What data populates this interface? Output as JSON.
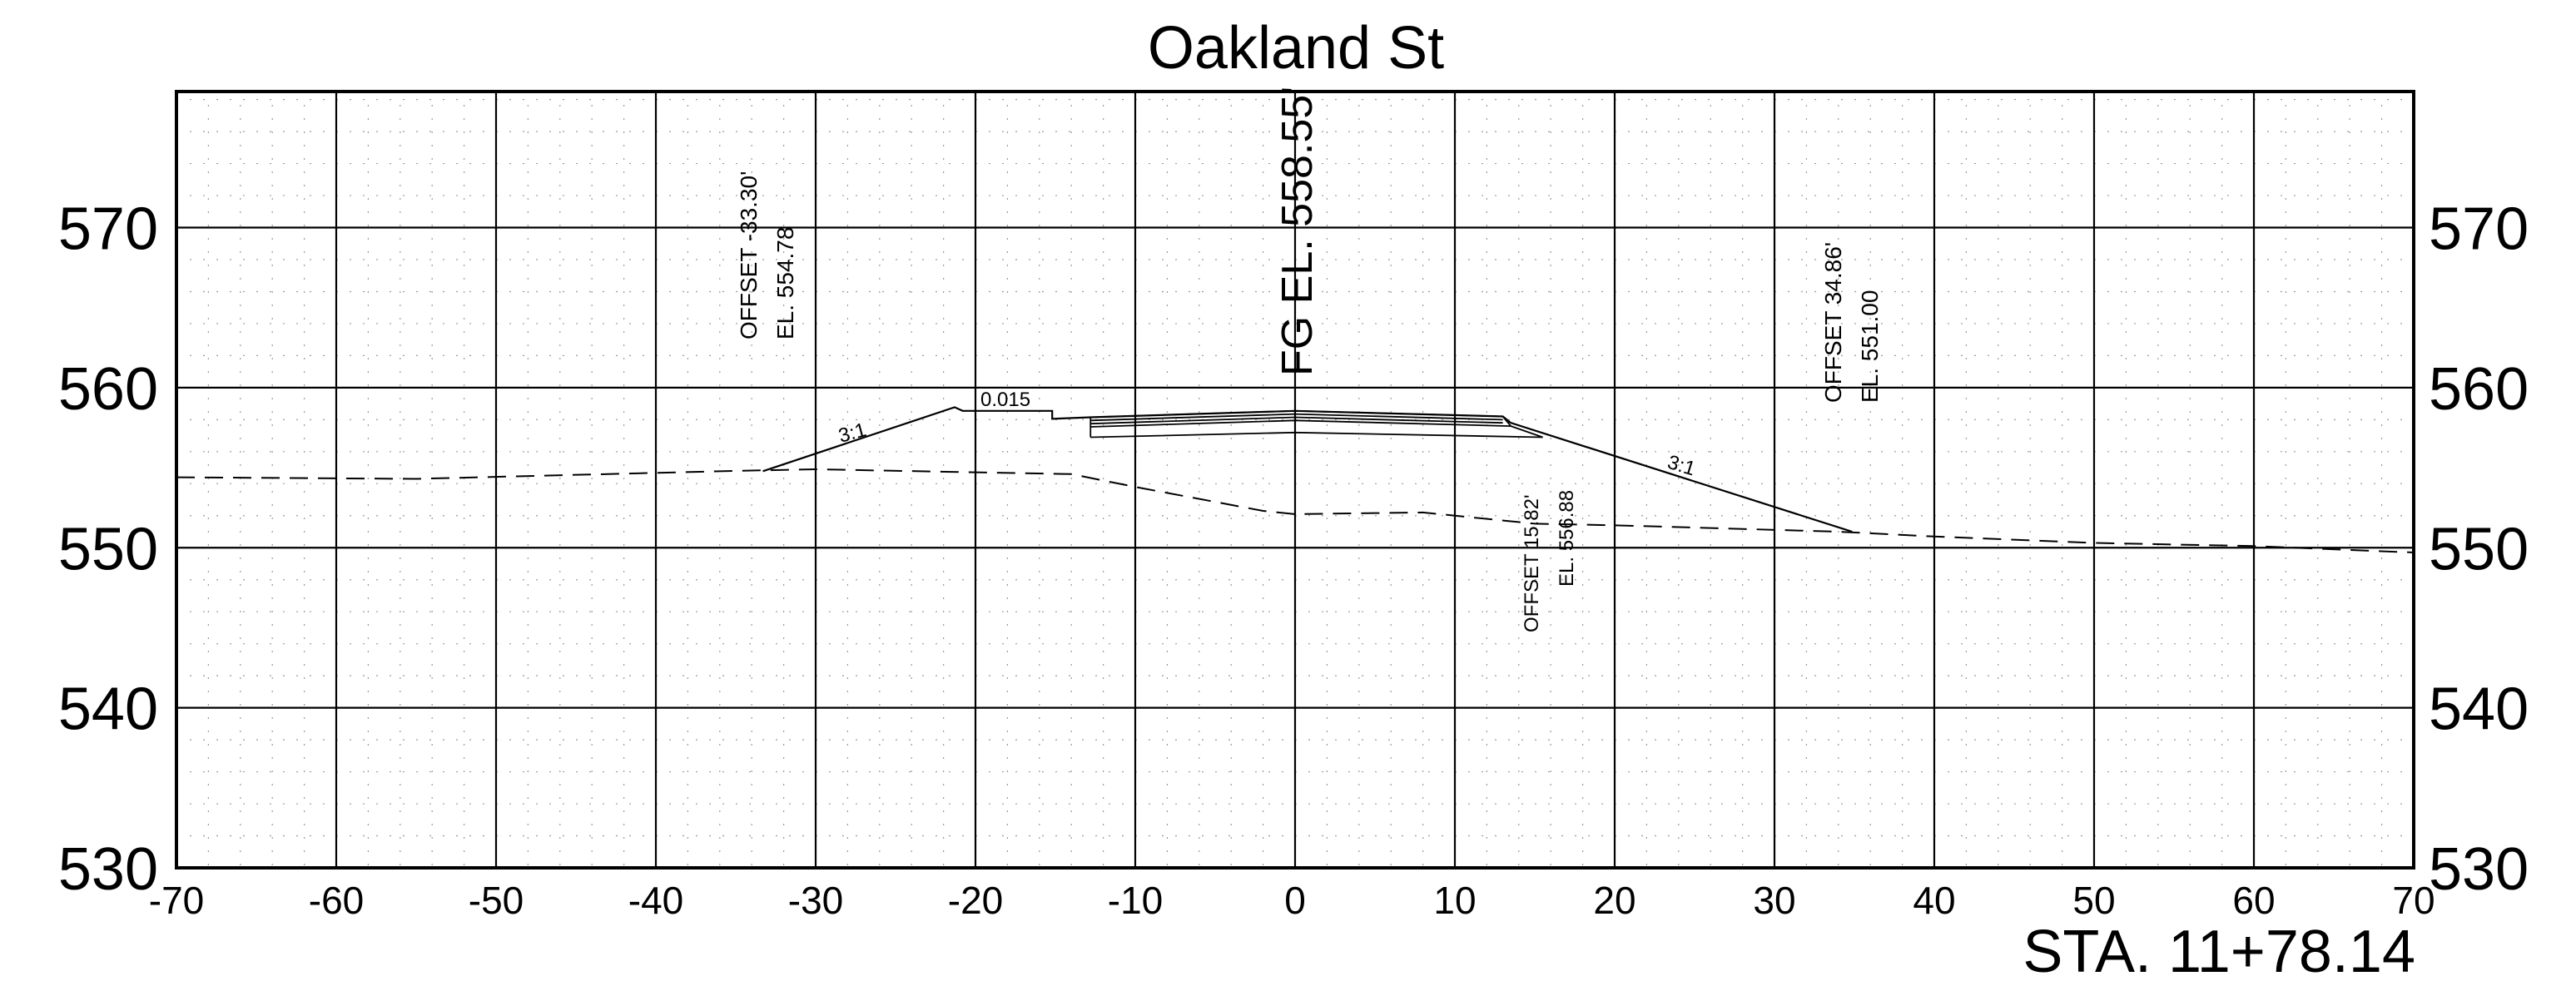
{
  "title": "Oakland St",
  "station_label": "STA. 11+78.14",
  "x_axis": {
    "min": -70,
    "max": 70,
    "step": 10,
    "tick_labels": [
      "-70",
      "-60",
      "-50",
      "-40",
      "-30",
      "-20",
      "-10",
      "0",
      "10",
      "20",
      "30",
      "40",
      "50",
      "60",
      "70"
    ]
  },
  "y_axis": {
    "min": 530,
    "max": 578.5,
    "step": 10,
    "tick_labels": [
      "530",
      "540",
      "550",
      "560",
      "570"
    ]
  },
  "annotations": {
    "fg_elevation": "FG EL. 558.55'",
    "left_catch_offset": "OFFSET -33.30'",
    "left_catch_elevation": "EL. 554.78",
    "right_catch_offset": "OFFSET 34.86'",
    "right_catch_elevation": "EL. 551.00",
    "mid_offset": "OFFSET 15.82'",
    "mid_elevation": "EL. 556.88",
    "left_slope": "3:1",
    "right_slope": "3:1",
    "cross_slope": "0.015"
  },
  "chart_data": {
    "type": "line",
    "title": "Oakland St",
    "xlim": [
      -70,
      70
    ],
    "ylim": [
      530,
      578.5
    ],
    "grid": true,
    "series": [
      {
        "style": "dashed",
        "x": [
          -70,
          -55,
          -35,
          -30,
          -14,
          -10,
          -2,
          0,
          8,
          15,
          20,
          34,
          40,
          50,
          60,
          70
        ],
        "y": [
          554.4,
          554.3,
          554.8,
          554.9,
          554.6,
          553.8,
          552.3,
          552.1,
          552.2,
          551.5,
          551.4,
          551.0,
          550.7,
          550.3,
          550.1,
          549.7
        ]
      },
      {
        "style": "solid",
        "x": [
          -33.3,
          -21.3,
          -20.8,
          -15.2,
          -15.2,
          -12.8
        ],
        "y": [
          554.78,
          558.78,
          558.55,
          558.55,
          558.05,
          558.15
        ]
      },
      {
        "style": "solid",
        "x": [
          -12.8,
          0,
          13,
          13.5,
          34.86
        ],
        "y": [
          558.15,
          558.55,
          558.2,
          557.8,
          551.0
        ]
      }
    ]
  }
}
